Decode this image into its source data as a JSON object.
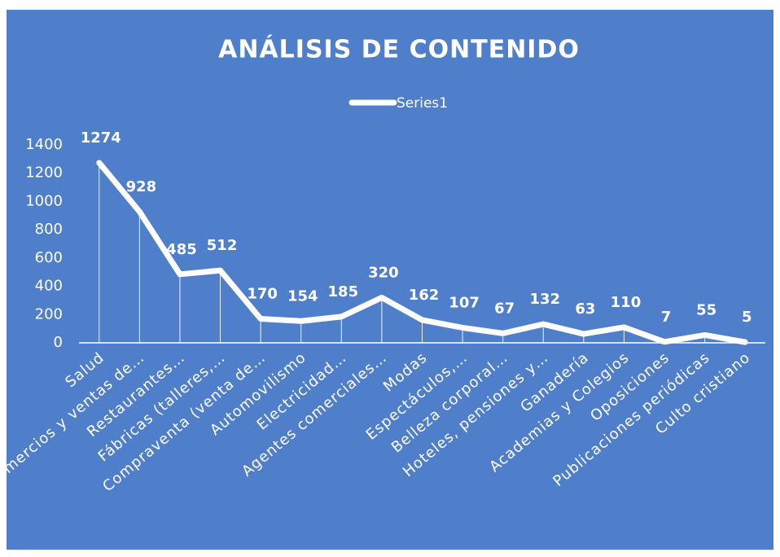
{
  "chart_data": {
    "type": "line",
    "title": "ANÁLISIS DE CONTENIDO",
    "categories": [
      "Salud",
      "Comercios y ventas de…",
      "Restaurantes…",
      "Fábricas (talleres,…",
      "Compraventa (venta de…",
      "Automovilismo",
      "Electricidad…",
      "Agentes comerciales…",
      "Modas",
      "Espectáculos,…",
      "Belleza corporal…",
      "Hoteles, pensiones y…",
      "Ganadería",
      "Academias y Colegios",
      "Oposiciones",
      "Publicaciones periódicas",
      "Culto cristiano"
    ],
    "series": [
      {
        "name": "Series1",
        "color": "#ffffff",
        "values": [
          1274,
          928,
          485,
          512,
          170,
          154,
          185,
          320,
          162,
          107,
          67,
          132,
          63,
          110,
          7,
          55,
          5
        ]
      }
    ],
    "ylim": [
      0,
      1400
    ],
    "yticks": [
      0,
      200,
      400,
      600,
      800,
      1000,
      1200,
      1400
    ],
    "legend": "top",
    "drop_lines": true
  }
}
